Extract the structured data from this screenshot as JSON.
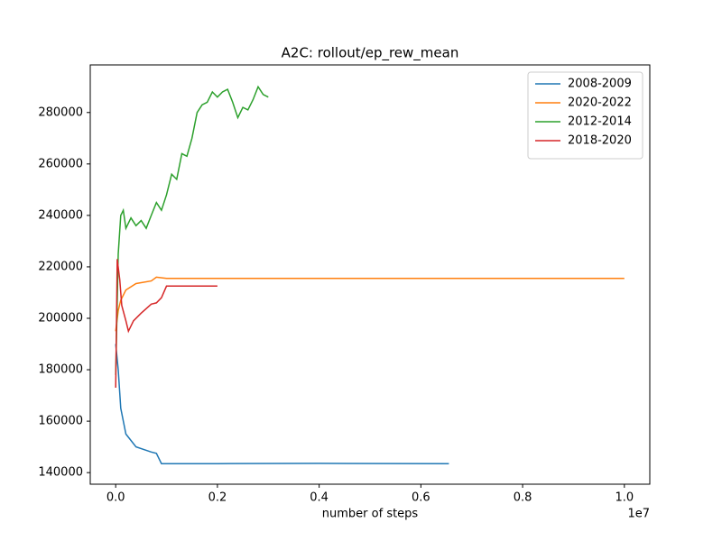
{
  "chart_data": {
    "type": "line",
    "title": "A2C: rollout/ep_rew_mean",
    "x_label": "number of steps",
    "x_offset_label": "1e7",
    "xlim": [
      -500000,
      10500000
    ],
    "ylim": [
      135500,
      298500
    ],
    "xticks": [
      {
        "value": 0,
        "label": "0.0"
      },
      {
        "value": 2000000,
        "label": "0.2"
      },
      {
        "value": 4000000,
        "label": "0.4"
      },
      {
        "value": 6000000,
        "label": "0.6"
      },
      {
        "value": 8000000,
        "label": "0.8"
      },
      {
        "value": 10000000,
        "label": "1.0"
      }
    ],
    "yticks": [
      140000,
      160000,
      180000,
      200000,
      220000,
      240000,
      260000,
      280000
    ],
    "legend": "upper right",
    "grid": false,
    "series": [
      {
        "name": "2008-2009",
        "color": "#1f77b4",
        "x": [
          0,
          50000,
          100000,
          200000,
          400000,
          700000,
          800000,
          900000,
          2000000,
          4000000,
          6550000
        ],
        "values": [
          190000,
          180000,
          165000,
          155000,
          150000,
          148000,
          147500,
          143500,
          143500,
          143600,
          143500
        ]
      },
      {
        "name": "2020-2022",
        "color": "#ff7f0e",
        "x": [
          0,
          50000,
          100000,
          200000,
          400000,
          700000,
          800000,
          1000000,
          4000000,
          10000000
        ],
        "values": [
          195000,
          203000,
          207000,
          211000,
          213500,
          214500,
          216000,
          215500,
          215500,
          215500
        ]
      },
      {
        "name": "2012-2014",
        "color": "#2ca02c",
        "x": [
          0,
          50000,
          100000,
          150000,
          200000,
          300000,
          400000,
          500000,
          600000,
          700000,
          800000,
          900000,
          1000000,
          1100000,
          1200000,
          1300000,
          1400000,
          1500000,
          1600000,
          1700000,
          1800000,
          1900000,
          2000000,
          2100000,
          2200000,
          2300000,
          2400000,
          2500000,
          2600000,
          2700000,
          2800000,
          2900000,
          3000000
        ],
        "values": [
          178000,
          225000,
          240000,
          242000,
          235000,
          239000,
          236000,
          238000,
          235000,
          240000,
          245000,
          242000,
          248000,
          256000,
          254000,
          264000,
          263000,
          270000,
          280000,
          283000,
          284000,
          288000,
          286000,
          288000,
          289000,
          284000,
          278000,
          282000,
          281000,
          285000,
          290000,
          287000,
          286000
        ]
      },
      {
        "name": "2018-2020",
        "color": "#d62728",
        "x": [
          0,
          30000,
          80000,
          120000,
          200000,
          250000,
          350000,
          500000,
          700000,
          800000,
          900000,
          1000000,
          2000000
        ],
        "values": [
          173000,
          223000,
          215000,
          205000,
          199000,
          195000,
          199000,
          202000,
          205500,
          206000,
          208000,
          212500,
          212500
        ]
      }
    ]
  }
}
